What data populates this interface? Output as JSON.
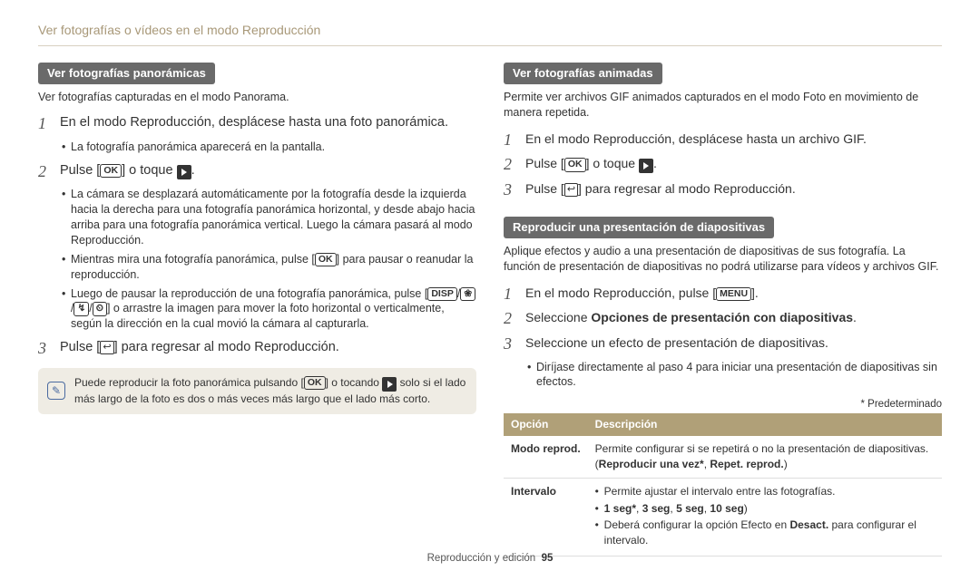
{
  "header": "Ver fotografías o vídeos en el modo Reproducción",
  "footer_section": "Reproducción y edición",
  "footer_page": "95",
  "icons": {
    "ok": "OK",
    "disp": "DISP",
    "menu": "MENU",
    "back": "↩",
    "macro": "❀",
    "timer": "⏲"
  },
  "left": {
    "pill": "Ver fotografías panorámicas",
    "intro": "Ver fotografías capturadas en el modo Panorama.",
    "step1": "En el modo Reproducción, desplácese hasta una foto panorámica.",
    "step1_sub1": "La fotografía panorámica aparecerá en la pantalla.",
    "step2_a": "Pulse [",
    "step2_b": "] o toque ",
    "step2_c": ".",
    "step2_sub1": "La cámara se desplazará automáticamente por la fotografía desde la izquierda hacia la derecha para una fotografía panorámica horizontal, y desde abajo hacia arriba para una fotografía panorámica vertical. Luego la cámara pasará al modo Reproducción.",
    "step2_sub2_a": "Mientras mira una fotografía panorámica, pulse [",
    "step2_sub2_b": "] para pausar o reanudar la reproducción.",
    "step2_sub3_a": "Luego de pausar la reproducción de una fotografía panorámica, pulse [",
    "step2_sub3_b": "] o arrastre la imagen para mover la foto horizontal o verticalmente, según la dirección en la cual movió la cámara al capturarla.",
    "step3_a": "Pulse [",
    "step3_b": "] para regresar al modo Reproducción.",
    "note_a": "Puede reproducir la foto panorámica pulsando [",
    "note_b": "] o tocando ",
    "note_c": " solo si el lado más largo de la foto es dos o más veces más largo que el lado más corto."
  },
  "right": {
    "pill1": "Ver fotografías animadas",
    "intro1": "Permite ver archivos GIF animados capturados en el modo Foto en movimiento de manera repetida.",
    "r1_step1": "En el modo Reproducción, desplácese hasta un archivo GIF.",
    "r1_step2_a": "Pulse [",
    "r1_step2_b": "] o toque ",
    "r1_step2_c": ".",
    "r1_step3_a": "Pulse [",
    "r1_step3_b": "] para regresar al modo Reproducción.",
    "pill2": "Reproducir una presentación de diapositivas",
    "intro2": "Aplique efectos y audio a una presentación de diapositivas de sus fotografía. La función de presentación de diapositivas no podrá utilizarse para vídeos y archivos GIF.",
    "r2_step1_a": "En el modo Reproducción, pulse [",
    "r2_step1_b": "].",
    "r2_step2_a": "Seleccione ",
    "r2_step2_b": "Opciones de presentación con diapositivas",
    "r2_step2_c": ".",
    "r2_step3": "Seleccione un efecto de presentación de diapositivas.",
    "r2_step3_sub": "Diríjase directamente al paso 4 para iniciar una presentación de diapositivas sin efectos.",
    "default_note": "* Predeterminado",
    "table": {
      "h1": "Opción",
      "h2": "Descripción",
      "row1_k": "Modo reprod.",
      "row1_v_a": "Permite configurar si se repetirá o no la presentación de diapositivas. (",
      "row1_v_b": "Reproducir una vez*",
      "row1_v_c": ", ",
      "row1_v_d": "Repet. reprod.",
      "row1_v_e": ")",
      "row2_k": "Intervalo",
      "row2_li1": "Permite ajustar el intervalo entre las fotografías.",
      "row2_li2_a": "1 seg*",
      "row2_li2_b": ", ",
      "row2_li2_c": "3 seg",
      "row2_li2_d": ", ",
      "row2_li2_e": "5 seg",
      "row2_li2_f": ", ",
      "row2_li2_g": "10 seg",
      "row2_li2_h": ")",
      "row2_li3_a": "Deberá configurar la opción Efecto en ",
      "row2_li3_b": "Desact.",
      "row2_li3_c": " para configurar el intervalo."
    }
  }
}
